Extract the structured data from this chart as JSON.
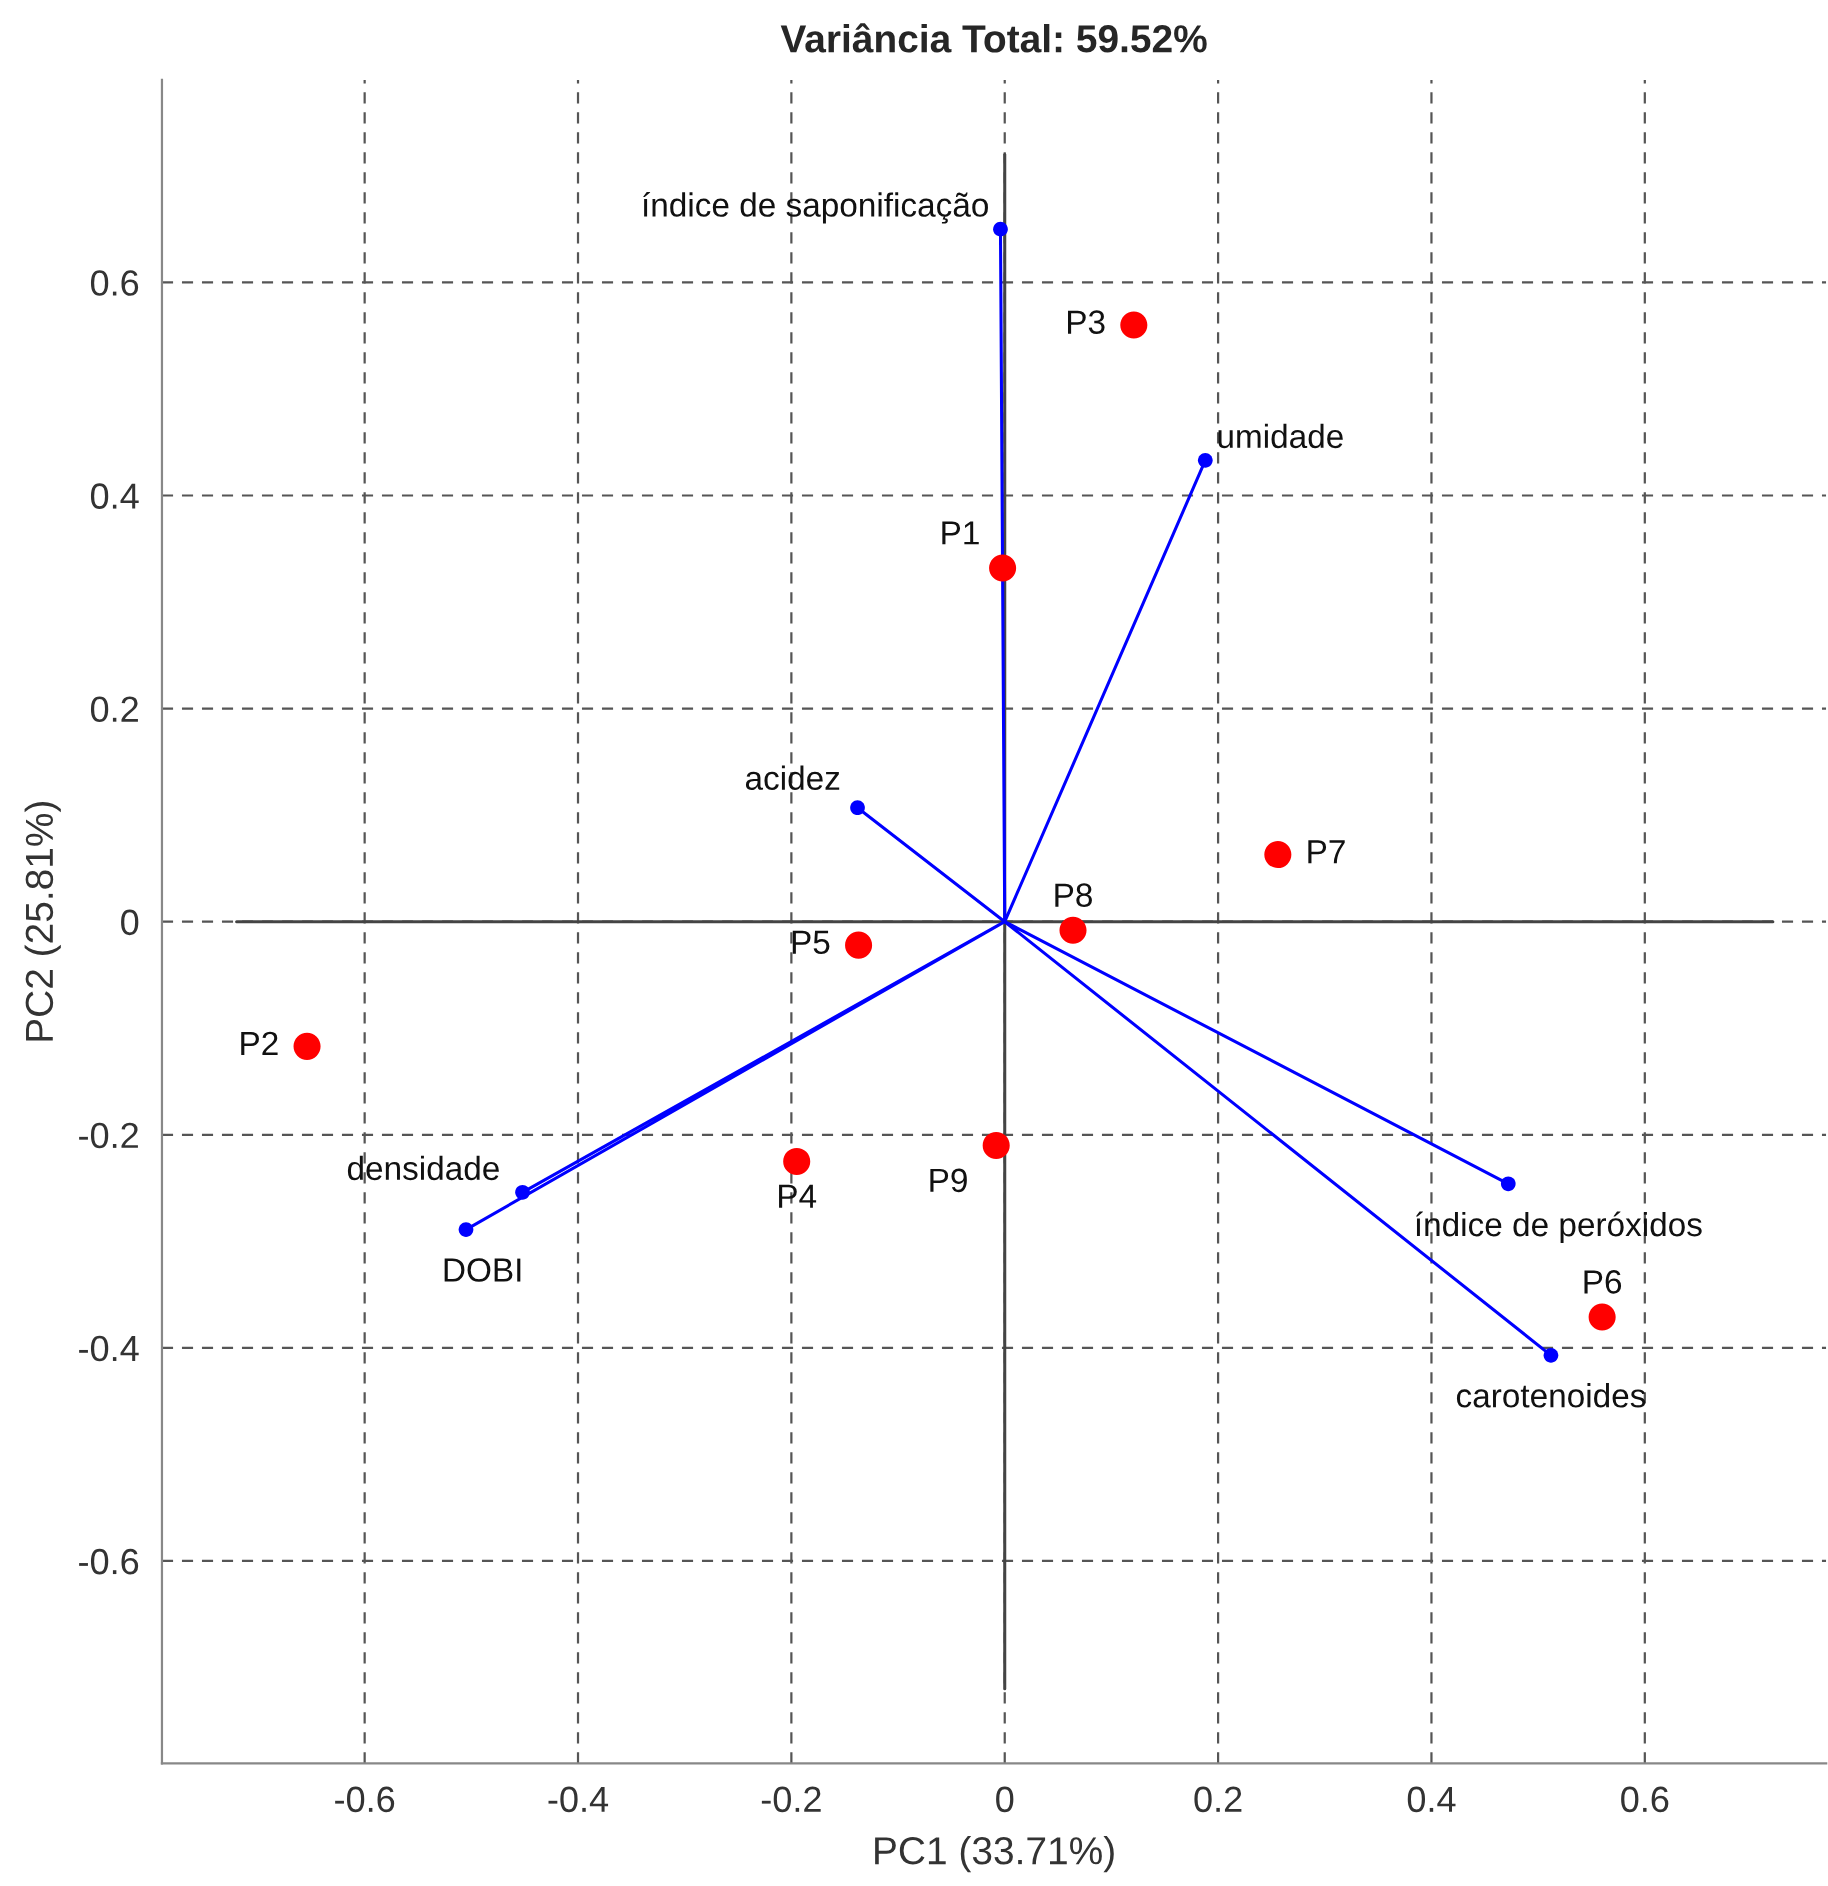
{
  "chart_data": {
    "type": "scatter",
    "title": "Variância Total: 59.52%",
    "xlabel": "PC1 (33.71%)",
    "ylabel": "PC2 (25.81%)",
    "xlim": [
      -0.79,
      0.77
    ],
    "ylim": [
      -0.79,
      0.79
    ],
    "xticks": [
      -0.6,
      -0.4,
      -0.2,
      0,
      0.2,
      0.4,
      0.6
    ],
    "yticks": [
      -0.6,
      -0.4,
      -0.2,
      0,
      0.2,
      0.4,
      0.6
    ],
    "grid": true,
    "series": [
      {
        "type": "line",
        "color": "#444444",
        "x": [
          -0.72,
          0.72
        ],
        "values": [
          0,
          0
        ]
      },
      {
        "type": "line",
        "color": "#444444",
        "x": [
          0,
          0
        ],
        "values": [
          -0.72,
          0.72
        ]
      },
      {
        "type": "line",
        "color": "#0000ff",
        "x": [
          0,
          -0.004,
          null,
          0,
          0.188,
          null,
          0,
          -0.138,
          null,
          0,
          -0.452,
          null,
          0,
          -0.505,
          null,
          0,
          0.472,
          null,
          0,
          0.512
        ],
        "values": [
          0,
          0.65,
          null,
          0,
          0.433,
          null,
          0,
          0.107,
          null,
          0,
          -0.254,
          null,
          0,
          -0.289,
          null,
          0,
          -0.246,
          null,
          0,
          -0.407
        ]
      },
      {
        "color": "#0000ff",
        "marker": "circle",
        "x": [
          -0.004,
          0.188,
          -0.138,
          -0.452,
          -0.505,
          0.472,
          0.512
        ],
        "values": [
          0.65,
          0.433,
          0.107,
          -0.254,
          -0.289,
          -0.246,
          -0.407
        ]
      },
      {
        "color": "#ff0000",
        "marker": "circle",
        "x": [
          -0.002,
          -0.654,
          0.121,
          -0.195,
          -0.137,
          0.56,
          0.256,
          0.064,
          -0.008
        ],
        "values": [
          0.332,
          -0.117,
          0.56,
          -0.225,
          -0.022,
          -0.371,
          0.063,
          -0.008,
          -0.21
        ]
      }
    ],
    "annotations": [
      {
        "text": "P1",
        "x": -0.002,
        "y": 0.332
      },
      {
        "text": "P2",
        "x": -0.654,
        "y": -0.117
      },
      {
        "text": "P3",
        "x": 0.121,
        "y": 0.56
      },
      {
        "text": "P4",
        "x": -0.195,
        "y": -0.225
      },
      {
        "text": "P5",
        "x": -0.137,
        "y": -0.022
      },
      {
        "text": "P6",
        "x": 0.56,
        "y": -0.371
      },
      {
        "text": "P7",
        "x": 0.256,
        "y": 0.063
      },
      {
        "text": "P8",
        "x": 0.064,
        "y": -0.008
      },
      {
        "text": "P9",
        "x": -0.008,
        "y": -0.21
      },
      {
        "text": "índice de saponificação",
        "x": -0.004,
        "y": 0.65
      },
      {
        "text": "umidade",
        "x": 0.188,
        "y": 0.433
      },
      {
        "text": "acidez",
        "x": -0.138,
        "y": 0.107
      },
      {
        "text": "densidade",
        "x": -0.452,
        "y": -0.254
      },
      {
        "text": "DOBI",
        "x": -0.505,
        "y": -0.289
      },
      {
        "text": "índice de peróxidos",
        "x": 0.472,
        "y": -0.246
      },
      {
        "text": "carotenoides",
        "x": 0.512,
        "y": -0.407
      }
    ]
  }
}
